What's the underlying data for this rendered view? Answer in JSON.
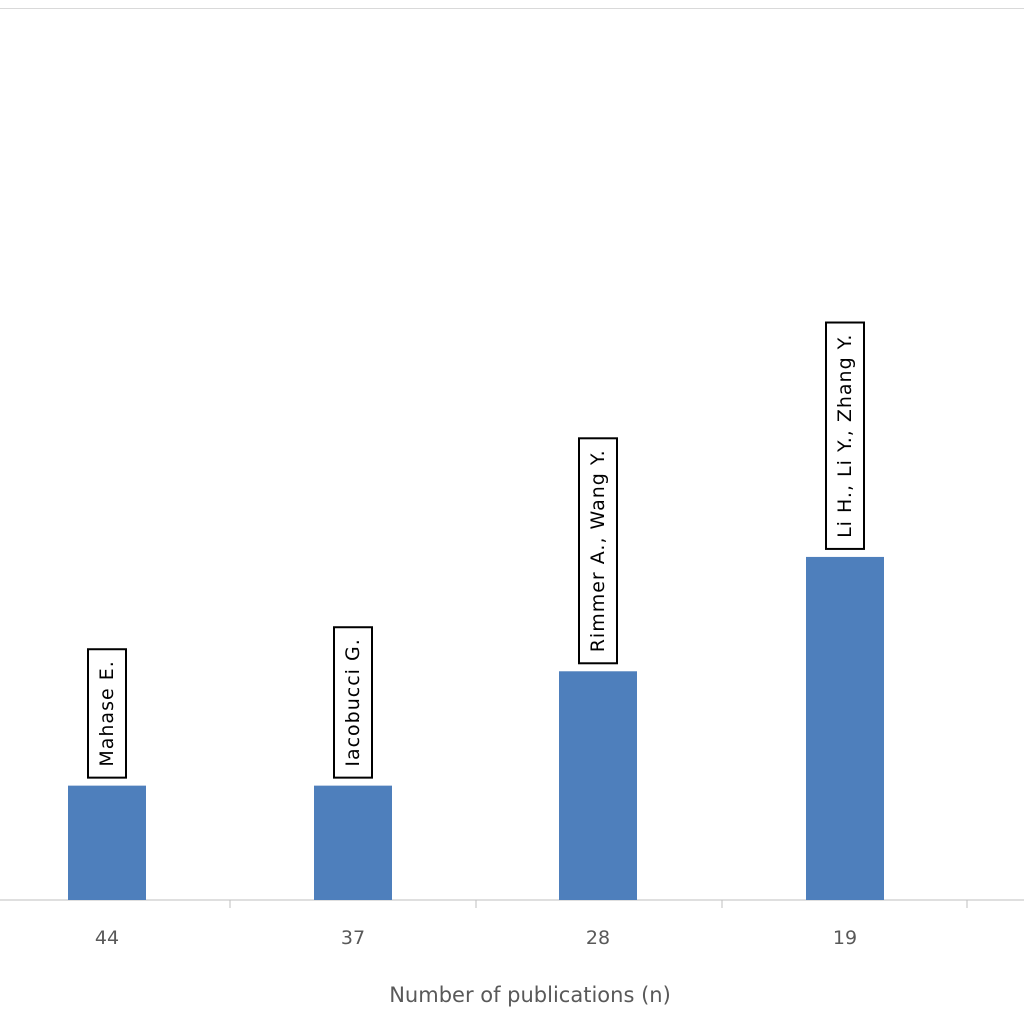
{
  "chart_data": {
    "type": "bar",
    "categories": [
      "44",
      "37",
      "28",
      "19"
    ],
    "values": [
      1,
      1,
      2,
      3
    ],
    "data_labels": [
      "Mahase E.",
      "Iacobucci G.",
      "Rimmer A., Wang Y.",
      "Li H., Li Y., Zhang Y."
    ],
    "xlabel": "Number  of publications (n)",
    "ylim": [
      0,
      7.8
    ],
    "grid": false,
    "colors": {
      "bar": "#4e7fbc",
      "axis": "#bfbfbf",
      "label_border": "#000000"
    }
  }
}
